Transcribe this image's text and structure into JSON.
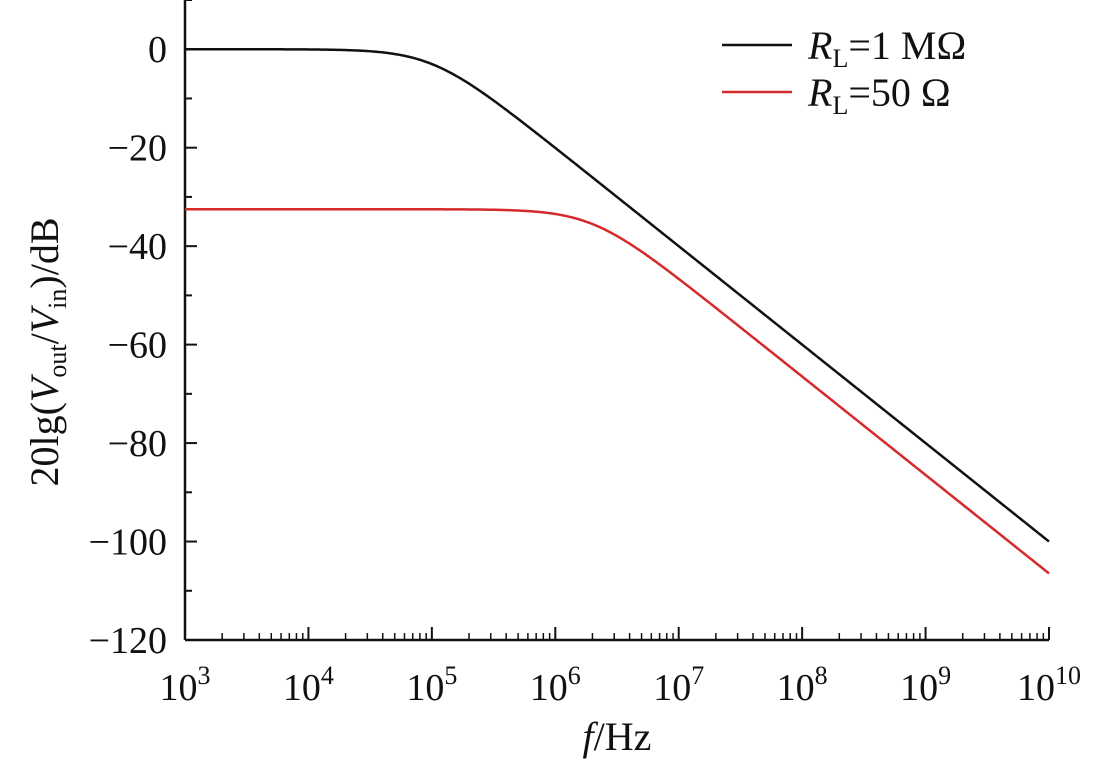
{
  "chart_data": {
    "type": "line",
    "title": "",
    "xlabel": "f/Hz",
    "xlabel_parts": {
      "var": "f",
      "unit": "/Hz"
    },
    "ylabel": "20lg(Vout/Vin)/dB",
    "ylabel_parts": {
      "prefix": "20lg(",
      "v1": "V",
      "s1": "out",
      "slash": "/",
      "v2": "V",
      "s2": "in",
      "suffix": ")/dB"
    },
    "xscale": "log",
    "xlim": [
      1000,
      10000000000
    ],
    "ylim": [
      -120,
      10
    ],
    "x_ticks": [
      {
        "base": "10",
        "exp": "3"
      },
      {
        "base": "10",
        "exp": "4"
      },
      {
        "base": "10",
        "exp": "5"
      },
      {
        "base": "10",
        "exp": "6"
      },
      {
        "base": "10",
        "exp": "7"
      },
      {
        "base": "10",
        "exp": "8"
      },
      {
        "base": "10",
        "exp": "9"
      },
      {
        "base": "10",
        "exp": "10"
      }
    ],
    "y_ticks": [
      "0",
      "−20",
      "−40",
      "−60",
      "−80",
      "−100",
      "−120"
    ],
    "grid": false,
    "legend": "top-right",
    "series": [
      {
        "name": "RL=1 MΩ",
        "label": {
          "var": "R",
          "sub": "L",
          "rest": "=1 MΩ"
        },
        "color": "#111111",
        "model": {
          "level_db": 0,
          "corner_hz": 100000
        },
        "x": [
          1000,
          10000,
          30000,
          100000,
          300000,
          1000000,
          10000000,
          100000000,
          1000000000,
          10000000000
        ],
        "y": [
          0,
          0,
          -0.4,
          -3,
          -10.5,
          -20,
          -40,
          -60,
          -82,
          -102
        ]
      },
      {
        "name": "RL=50 Ω",
        "label": {
          "var": "R",
          "sub": "L",
          "rest": "=50 Ω"
        },
        "color": "#d42a2a",
        "model": {
          "level_db": -32.5,
          "corner_hz": 2000000
        },
        "x": [
          1000,
          10000,
          100000,
          1000000,
          2000000,
          5000000,
          10000000,
          100000000,
          1000000000,
          10000000000
        ],
        "y": [
          -32.5,
          -32.5,
          -32.5,
          -33.5,
          -35.5,
          -41,
          -46.5,
          -66.5,
          -87,
          -108
        ]
      }
    ]
  }
}
